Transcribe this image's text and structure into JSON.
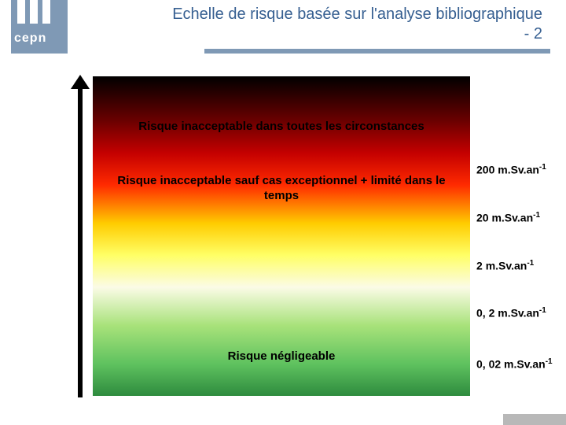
{
  "brand": {
    "name": "cepn",
    "logo_bg": "#7f99b5",
    "logo_fg": "#ffffff"
  },
  "title": {
    "line1": "Echelle de risque basée sur l'analyse bibliographique",
    "line2": "- 2",
    "color": "#365f91",
    "rule_color": "#7f99b5"
  },
  "risk_scale": {
    "type": "infographic",
    "arrow_color": "#000000",
    "gradient_stops": [
      {
        "pct": 0,
        "color": "#000000"
      },
      {
        "pct": 14,
        "color": "#6b0000"
      },
      {
        "pct": 24,
        "color": "#c40000"
      },
      {
        "pct": 34,
        "color": "#ff2a00"
      },
      {
        "pct": 46,
        "color": "#ffcc00"
      },
      {
        "pct": 56,
        "color": "#ffff66"
      },
      {
        "pct": 66,
        "color": "#fbfbe6"
      },
      {
        "pct": 78,
        "color": "#a8e27a"
      },
      {
        "pct": 90,
        "color": "#5fc25f"
      },
      {
        "pct": 100,
        "color": "#2e8b3e"
      }
    ],
    "bands": [
      {
        "label": "Risque inacceptable dans toutes les circonstances",
        "top_pct": 16
      },
      {
        "label": "Risque inacceptable sauf cas exceptionnel + limité dans le temps",
        "top_pct": 33
      },
      {
        "label": "Risque négligeable",
        "top_pct": 88
      }
    ],
    "ticks": [
      {
        "label_value": "200",
        "label_unit": "m.Sv.an",
        "exp": "-1",
        "top_pct": 29
      },
      {
        "label_value": "20",
        "label_unit": "m.Sv.an",
        "exp": "-1",
        "top_pct": 44
      },
      {
        "label_value": "2",
        "label_unit": "m.Sv.an",
        "exp": "-1",
        "top_pct": 59
      },
      {
        "label_value": "0, 2",
        "label_unit": "m.Sv.an",
        "exp": "-1",
        "top_pct": 74
      },
      {
        "label_value": "0, 02",
        "label_unit": "m.Sv.an",
        "exp": "-1",
        "top_pct": 90
      }
    ],
    "label_fontsize_pt": 11,
    "band_fontsize_pt": 11
  },
  "footer_accent_color": "#b8b8b8"
}
